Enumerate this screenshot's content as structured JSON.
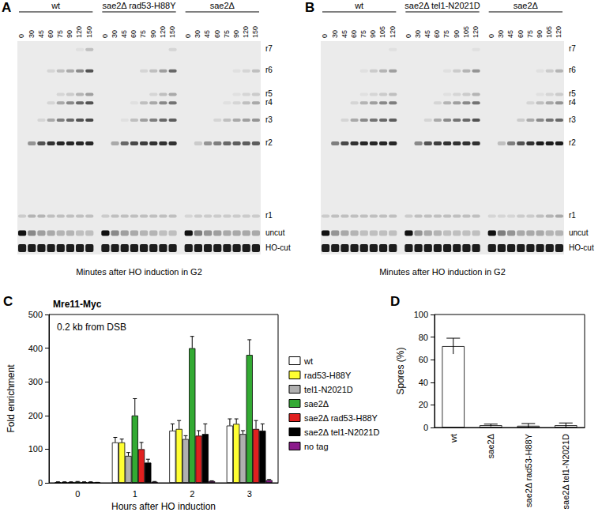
{
  "gels": [
    {
      "label": "A",
      "caption": "Minutes after HO induction in G2",
      "bands": [
        "r7",
        "r6",
        "r5",
        "r4",
        "r3",
        "r2",
        "r1",
        "uncut",
        "HO-cut"
      ],
      "groups": [
        {
          "name": "wt",
          "lanes": [
            0,
            30,
            45,
            60,
            75,
            90,
            120,
            150
          ],
          "signal": {
            "r7": [
              0,
              0,
              0,
              0,
              0,
              0,
              0.05,
              0.2
            ],
            "r6": [
              0,
              0,
              0,
              0.1,
              0.2,
              0.3,
              0.45,
              0.7
            ],
            "r5": [
              0,
              0,
              0,
              0,
              0.1,
              0.15,
              0.25,
              0.35
            ],
            "r4": [
              0,
              0,
              0,
              0.1,
              0.3,
              0.45,
              0.6,
              0.7
            ],
            "r3": [
              0,
              0,
              0.1,
              0.3,
              0.5,
              0.6,
              0.7,
              0.75
            ],
            "r2": [
              0,
              0.4,
              0.7,
              0.85,
              0.9,
              0.9,
              0.9,
              0.9
            ],
            "r1": [
              0.15,
              0.25,
              0.25,
              0.2,
              0.2,
              0.2,
              0.2,
              0.2
            ],
            "uncut": [
              1,
              0.45,
              0.35,
              0.3,
              0.25,
              0.25,
              0.2,
              0.2
            ],
            "HO-cut": [
              0.95,
              0.95,
              0.95,
              0.95,
              0.95,
              0.95,
              0.95,
              0.95
            ]
          }
        },
        {
          "name": "sae2Δ rad53-H88Y",
          "lanes": [
            0,
            30,
            45,
            60,
            75,
            90,
            120,
            150
          ],
          "signal": {
            "r7": [
              0,
              0,
              0,
              0,
              0,
              0,
              0,
              0.1
            ],
            "r6": [
              0,
              0,
              0,
              0,
              0.1,
              0.2,
              0.35,
              0.6
            ],
            "r5": [
              0,
              0,
              0,
              0,
              0,
              0.1,
              0.2,
              0.3
            ],
            "r4": [
              0,
              0,
              0,
              0.05,
              0.2,
              0.3,
              0.45,
              0.55
            ],
            "r3": [
              0,
              0,
              0.05,
              0.2,
              0.35,
              0.5,
              0.6,
              0.65
            ],
            "r2": [
              0,
              0.3,
              0.6,
              0.75,
              0.8,
              0.85,
              0.85,
              0.85
            ],
            "r1": [
              0.15,
              0.2,
              0.2,
              0.2,
              0.2,
              0.2,
              0.2,
              0.2
            ],
            "uncut": [
              1,
              0.45,
              0.35,
              0.3,
              0.25,
              0.25,
              0.2,
              0.2
            ],
            "HO-cut": [
              0.95,
              0.95,
              0.95,
              0.95,
              0.95,
              0.95,
              0.95,
              0.95
            ]
          }
        },
        {
          "name": "sae2Δ",
          "lanes": [
            0,
            30,
            45,
            60,
            75,
            90,
            120,
            150
          ],
          "signal": {
            "r7": [
              0,
              0,
              0,
              0,
              0,
              0,
              0,
              0
            ],
            "r6": [
              0,
              0,
              0,
              0,
              0,
              0.05,
              0.1,
              0.2
            ],
            "r5": [
              0,
              0,
              0,
              0,
              0,
              0.05,
              0.1,
              0.15
            ],
            "r4": [
              0,
              0,
              0,
              0,
              0.05,
              0.1,
              0.2,
              0.3
            ],
            "r3": [
              0,
              0,
              0,
              0.1,
              0.2,
              0.3,
              0.35,
              0.4
            ],
            "r2": [
              0,
              0.15,
              0.4,
              0.5,
              0.6,
              0.65,
              0.65,
              0.65
            ],
            "r1": [
              0.1,
              0.15,
              0.15,
              0.15,
              0.15,
              0.15,
              0.15,
              0.15
            ],
            "uncut": [
              1,
              0.5,
              0.4,
              0.35,
              0.3,
              0.3,
              0.3,
              0.3
            ],
            "HO-cut": [
              0.95,
              0.95,
              0.95,
              0.95,
              0.95,
              0.95,
              0.95,
              0.95
            ]
          }
        }
      ]
    },
    {
      "label": "B",
      "caption": "Minutes after HO induction in G2",
      "bands": [
        "r7",
        "r6",
        "r5",
        "r4",
        "r3",
        "r2",
        "r1",
        "uncut",
        "HO-cut"
      ],
      "groups": [
        {
          "name": "wt",
          "lanes": [
            0,
            30,
            45,
            60,
            75,
            90,
            105,
            120
          ],
          "signal": {
            "r7": [
              0,
              0,
              0,
              0,
              0,
              0,
              0,
              0.05
            ],
            "r6": [
              0,
              0,
              0,
              0,
              0.05,
              0.15,
              0.25,
              0.35
            ],
            "r5": [
              0,
              0,
              0,
              0,
              0.05,
              0.1,
              0.15,
              0.2
            ],
            "r4": [
              0,
              0,
              0,
              0.1,
              0.25,
              0.35,
              0.45,
              0.5
            ],
            "r3": [
              0,
              0,
              0.1,
              0.3,
              0.45,
              0.55,
              0.6,
              0.65
            ],
            "r2": [
              0,
              0.5,
              0.75,
              0.85,
              0.9,
              0.9,
              0.9,
              0.9
            ],
            "r1": [
              0.15,
              0.2,
              0.2,
              0.2,
              0.2,
              0.2,
              0.2,
              0.2
            ],
            "uncut": [
              1,
              0.4,
              0.3,
              0.25,
              0.2,
              0.2,
              0.2,
              0.2
            ],
            "HO-cut": [
              0.95,
              0.95,
              0.95,
              0.95,
              0.95,
              0.95,
              0.95,
              0.95
            ]
          }
        },
        {
          "name": "sae2Δ tel1-N2021D",
          "lanes": [
            0,
            30,
            45,
            60,
            75,
            90,
            105,
            120
          ],
          "signal": {
            "r7": [
              0,
              0,
              0,
              0,
              0,
              0,
              0,
              0.05
            ],
            "r6": [
              0,
              0,
              0,
              0,
              0.05,
              0.15,
              0.25,
              0.4
            ],
            "r5": [
              0,
              0,
              0,
              0,
              0.05,
              0.1,
              0.15,
              0.25
            ],
            "r4": [
              0,
              0,
              0,
              0.1,
              0.25,
              0.35,
              0.45,
              0.55
            ],
            "r3": [
              0,
              0,
              0.1,
              0.3,
              0.45,
              0.55,
              0.6,
              0.7
            ],
            "r2": [
              0,
              0.45,
              0.7,
              0.8,
              0.85,
              0.85,
              0.85,
              0.85
            ],
            "r1": [
              0.15,
              0.2,
              0.2,
              0.2,
              0.2,
              0.2,
              0.2,
              0.2
            ],
            "uncut": [
              1,
              0.4,
              0.3,
              0.25,
              0.2,
              0.2,
              0.2,
              0.2
            ],
            "HO-cut": [
              0.95,
              0.95,
              0.95,
              0.95,
              0.95,
              0.95,
              0.95,
              0.95
            ]
          }
        },
        {
          "name": "sae2Δ",
          "lanes": [
            0,
            30,
            45,
            60,
            75,
            90,
            105,
            120
          ],
          "signal": {
            "r7": [
              0,
              0,
              0,
              0,
              0,
              0,
              0,
              0
            ],
            "r6": [
              0,
              0,
              0,
              0,
              0,
              0.05,
              0.15,
              0.25
            ],
            "r5": [
              0,
              0,
              0,
              0,
              0,
              0.05,
              0.1,
              0.15
            ],
            "r4": [
              0,
              0,
              0,
              0,
              0.1,
              0.2,
              0.3,
              0.4
            ],
            "r3": [
              0,
              0,
              0,
              0.15,
              0.3,
              0.45,
              0.55,
              0.6
            ],
            "r2": [
              0,
              0.2,
              0.5,
              0.7,
              0.85,
              0.95,
              0.95,
              0.95
            ],
            "r1": [
              0.1,
              0.1,
              0.1,
              0.15,
              0.15,
              0.2,
              0.25,
              0.3
            ],
            "uncut": [
              1,
              0.5,
              0.4,
              0.3,
              0.3,
              0.3,
              0.25,
              0.25
            ],
            "HO-cut": [
              0.95,
              0.95,
              0.95,
              0.95,
              0.95,
              0.95,
              0.95,
              0.95
            ]
          }
        }
      ]
    }
  ],
  "chart_data": [
    {
      "type": "bar",
      "label": "C",
      "title": "Mre11-Myc",
      "annotation": "0.2 kb from DSB",
      "x_label": "Hours after HO induction",
      "y_label": "Fold enrichment",
      "categories": [
        "0",
        "1",
        "2",
        "3"
      ],
      "series": [
        {
          "name": "wt",
          "color": "#ffffff",
          "values": [
            2,
            120,
            155,
            170
          ],
          "errors": [
            1,
            15,
            20,
            20
          ]
        },
        {
          "name": "rad53-H88Y",
          "color": "#ffff33",
          "values": [
            2,
            120,
            160,
            175
          ],
          "errors": [
            1,
            10,
            25,
            15
          ]
        },
        {
          "name": "tel1-N2021D",
          "color": "#b0b0b0",
          "values": [
            2,
            80,
            130,
            145
          ],
          "errors": [
            1,
            10,
            10,
            10
          ]
        },
        {
          "name": "sae2Δ",
          "color": "#33aa33",
          "values": [
            3,
            200,
            400,
            380
          ],
          "errors": [
            1,
            50,
            35,
            45
          ]
        },
        {
          "name": "sae2Δ rad53-H88Y",
          "color": "#e0201f",
          "values": [
            2,
            100,
            140,
            160
          ],
          "errors": [
            1,
            20,
            15,
            25
          ]
        },
        {
          "name": "sae2Δ tel1-N2021D",
          "color": "#000000",
          "values": [
            2,
            60,
            145,
            155
          ],
          "errors": [
            1,
            10,
            30,
            20
          ]
        },
        {
          "name": "no tag",
          "color": "#8b1a8b",
          "values": [
            1,
            3,
            5,
            8
          ],
          "errors": [
            0.5,
            1,
            1,
            2
          ]
        }
      ],
      "ylim": [
        0,
        500
      ],
      "yticks": [
        0,
        100,
        200,
        300,
        400,
        500
      ],
      "legend": "right",
      "grid": false
    },
    {
      "type": "bar",
      "label": "D",
      "y_label": "Spores (%)",
      "categories": [
        "wt",
        "sae2Δ",
        "sae2Δ rad53-H88Y",
        "sae2Δ tel1-N2021D"
      ],
      "values": [
        72,
        2,
        1.5,
        2
      ],
      "errors": [
        7,
        1,
        2,
        2
      ],
      "color": "#ffffff",
      "ylim": [
        0,
        100
      ],
      "yticks": [
        0,
        20,
        40,
        60,
        80,
        100
      ],
      "grid": false
    }
  ]
}
